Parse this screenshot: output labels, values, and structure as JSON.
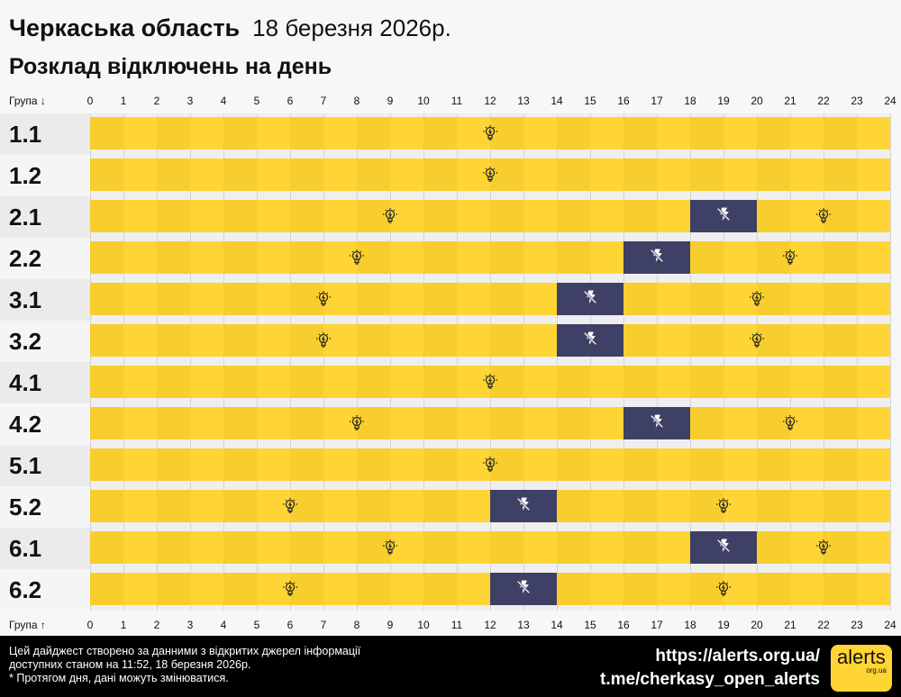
{
  "header": {
    "region": "Черкаська область",
    "date": "18 березня 2026р.",
    "subtitle": "Розклад відключень на день"
  },
  "axis": {
    "top_label": "Група ↓",
    "bottom_label": "Група ↑"
  },
  "colors": {
    "power_on": "#ffd535",
    "power_off": "#3e4066"
  },
  "chart_data": {
    "type": "table",
    "title": "Розклад відключень на день",
    "x_ticks": [
      0,
      1,
      2,
      3,
      4,
      5,
      6,
      7,
      8,
      9,
      10,
      11,
      12,
      13,
      14,
      15,
      16,
      17,
      18,
      19,
      20,
      21,
      22,
      23,
      24
    ],
    "xlim": [
      0,
      24
    ],
    "groups": [
      {
        "name": "1.1",
        "outages": []
      },
      {
        "name": "1.2",
        "outages": []
      },
      {
        "name": "2.1",
        "outages": [
          [
            18,
            20
          ]
        ]
      },
      {
        "name": "2.2",
        "outages": [
          [
            16,
            18
          ]
        ]
      },
      {
        "name": "3.1",
        "outages": [
          [
            14,
            16
          ]
        ]
      },
      {
        "name": "3.2",
        "outages": [
          [
            14,
            16
          ]
        ]
      },
      {
        "name": "4.1",
        "outages": []
      },
      {
        "name": "4.2",
        "outages": [
          [
            16,
            18
          ]
        ]
      },
      {
        "name": "5.1",
        "outages": []
      },
      {
        "name": "5.2",
        "outages": [
          [
            12,
            14
          ]
        ]
      },
      {
        "name": "6.1",
        "outages": [
          [
            18,
            20
          ]
        ]
      },
      {
        "name": "6.2",
        "outages": [
          [
            12,
            14
          ]
        ]
      }
    ]
  },
  "footer": {
    "note_lines": [
      "Цей дайджест створено за данними з відкритих джерел інформації",
      "доступних станом на 11:52, 18 березня 2026р.",
      "* Протягом дня, дані можуть змінюватися."
    ],
    "site_link": "https://alerts.org.ua/",
    "telegram_link": "t.me/cherkasy_open_alerts",
    "logo_text": "alerts",
    "logo_sub": "org.ua"
  }
}
